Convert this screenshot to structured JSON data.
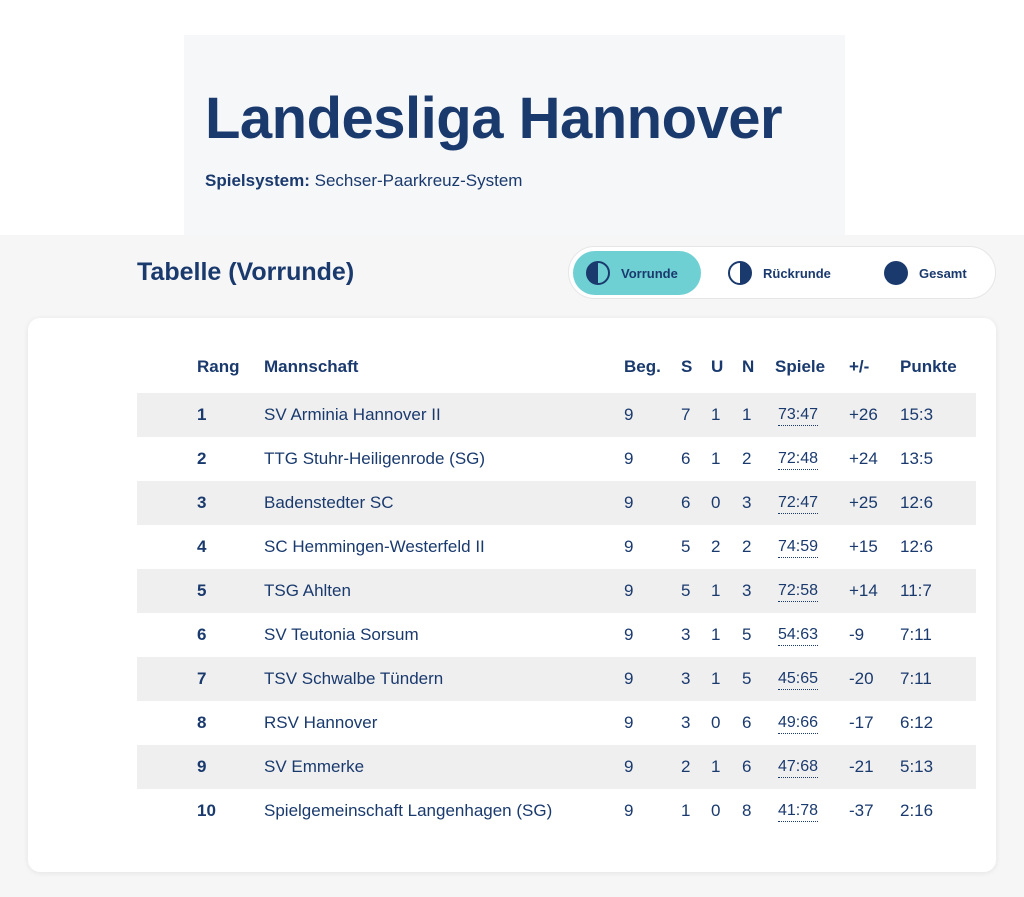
{
  "header": {
    "title": "Landesliga Hannover",
    "system_label": "Spielsystem:",
    "system_value": "Sechser-Paarkreuz-System"
  },
  "section": {
    "title": "Tabelle (Vorrunde)",
    "tabs": [
      "Vorrunde",
      "Rückrunde",
      "Gesamt"
    ]
  },
  "table": {
    "columns": [
      "Rang",
      "Mannschaft",
      "Beg.",
      "S",
      "U",
      "N",
      "Spiele",
      "+/-",
      "Punkte"
    ],
    "rows": [
      [
        1,
        "SV Arminia Hannover II",
        9,
        7,
        1,
        1,
        "73:47",
        "+26",
        "15:3"
      ],
      [
        2,
        "TTG Stuhr-Heiligenrode (SG)",
        9,
        6,
        1,
        2,
        "72:48",
        "+24",
        "13:5"
      ],
      [
        3,
        "Badenstedter SC",
        9,
        6,
        0,
        3,
        "72:47",
        "+25",
        "12:6"
      ],
      [
        4,
        "SC Hemmingen-Westerfeld II",
        9,
        5,
        2,
        2,
        "74:59",
        "+15",
        "12:6"
      ],
      [
        5,
        "TSG Ahlten",
        9,
        5,
        1,
        3,
        "72:58",
        "+14",
        "11:7"
      ],
      [
        6,
        "SV Teutonia Sorsum",
        9,
        3,
        1,
        5,
        "54:63",
        -9,
        "7:11"
      ],
      [
        7,
        "TSV Schwalbe Tündern",
        9,
        3,
        1,
        5,
        "45:65",
        -20,
        "7:11"
      ],
      [
        8,
        "RSV Hannover",
        9,
        3,
        0,
        6,
        "49:66",
        -17,
        "6:12"
      ],
      [
        9,
        "SV Emmerke",
        9,
        2,
        1,
        6,
        "47:68",
        -21,
        "5:13"
      ],
      [
        10,
        "Spielgemeinschaft Langenhagen (SG)",
        9,
        1,
        0,
        8,
        "41:78",
        -37,
        "2:16"
      ]
    ]
  }
}
